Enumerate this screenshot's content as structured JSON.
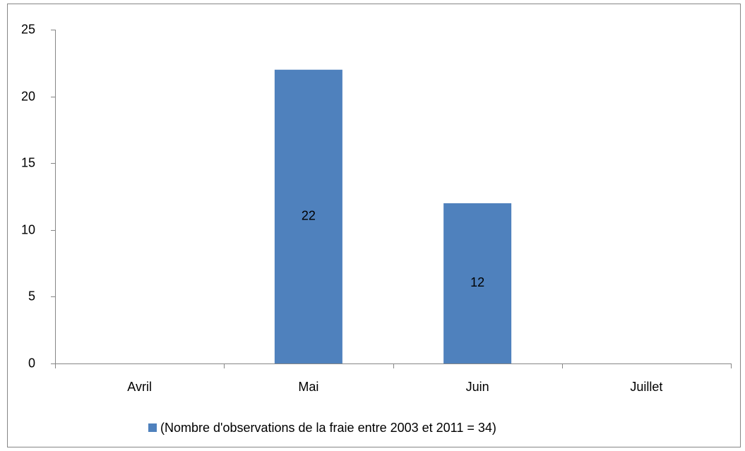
{
  "chart_data": {
    "type": "bar",
    "categories": [
      "Avril",
      "Mai",
      "Juin",
      "Juillet"
    ],
    "series": [
      {
        "name": "(Nombre d'observations de la fraie entre 2003 et 2011 = 34)",
        "color": "#4f81bd",
        "values": [
          0,
          22,
          12,
          0
        ]
      }
    ],
    "ylim": [
      0,
      25
    ],
    "yticks": [
      0,
      5,
      10,
      15,
      20,
      25
    ],
    "grid": false,
    "legend": "bottom"
  }
}
